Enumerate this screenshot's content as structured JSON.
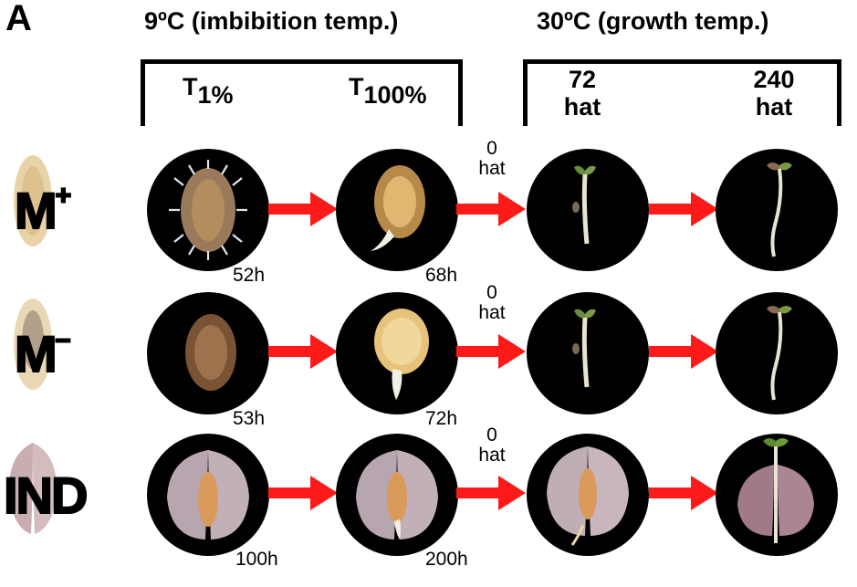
{
  "panel_label": "A",
  "groups": {
    "imbibition": {
      "heading": "9ºC (imbibition temp.)",
      "t_first": "T",
      "t_first_sub": "1%",
      "t_second": "T",
      "t_second_sub": "100%"
    },
    "growth": {
      "heading": "30ºC (growth temp.)",
      "first_top": "72",
      "first_bottom": "hat",
      "second_top": "240",
      "second_bottom": "hat"
    }
  },
  "transition": {
    "line1": "0",
    "line2": "hat"
  },
  "rows": [
    {
      "label": "M",
      "label_sup": "+",
      "time1": "52h",
      "time2": "68h"
    },
    {
      "label": "M",
      "label_sup": "–",
      "time1": "53h",
      "time2": "72h"
    },
    {
      "label": "IND",
      "label_sup": "",
      "time1": "100h",
      "time2": "200h"
    }
  ],
  "colors": {
    "arrow": "#ff1a1a",
    "circle_bg": "#000000",
    "seedling": "#e8e4d0",
    "cotyledon": "#6b8a3a"
  }
}
